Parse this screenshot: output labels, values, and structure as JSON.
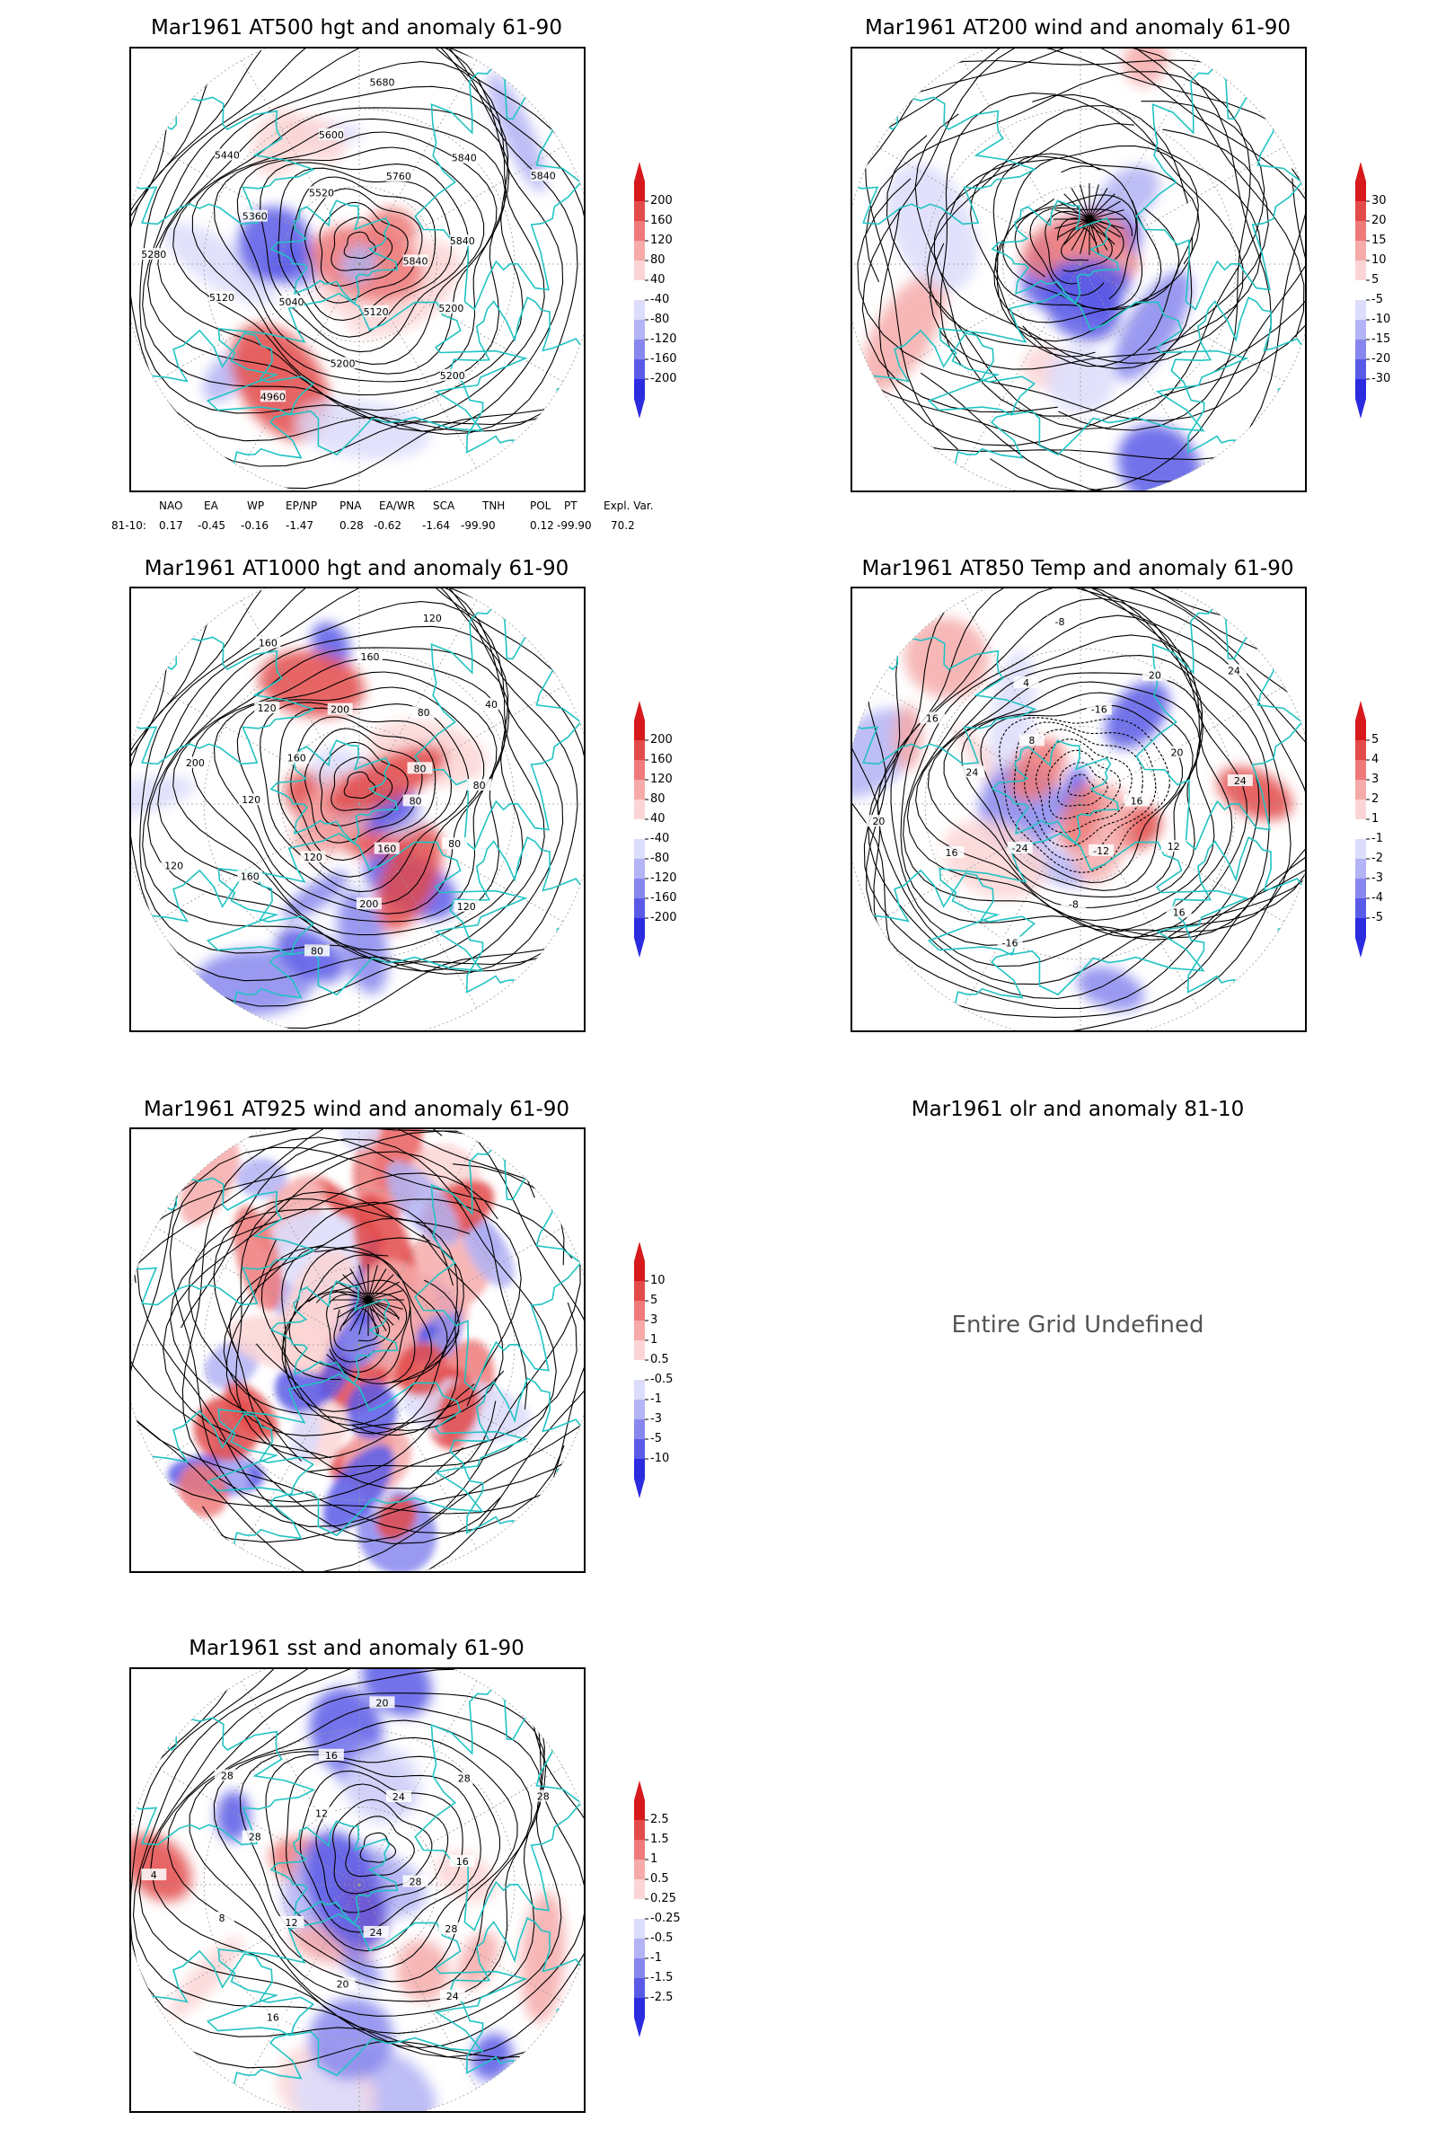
{
  "panels": [
    {
      "id": "p1",
      "title": "Mar1961 AT500 hgt and anomaly 61-90",
      "colorbar": [
        "200",
        "160",
        "120",
        "80",
        "40",
        "-40",
        "-80",
        "-120",
        "-160",
        "-200"
      ],
      "contour_labels": [
        "5840",
        "5200",
        "5200",
        "5120",
        "5200",
        "4960",
        "5040",
        "5120",
        "5280",
        "5360",
        "5440",
        "5520",
        "5600",
        "5680",
        "5760",
        "5840",
        "5840",
        "5840"
      ]
    },
    {
      "id": "p2",
      "title": "Mar1961 AT200 wind and anomaly 61-90",
      "colorbar": [
        "30",
        "20",
        "15",
        "10",
        "5",
        "-5",
        "-10",
        "-15",
        "-20",
        "-30"
      ],
      "contour_labels": []
    },
    {
      "id": "p3",
      "title": "Mar1961 AT1000 hgt and anomaly 61-90",
      "colorbar": [
        "200",
        "160",
        "120",
        "80",
        "40",
        "-40",
        "-80",
        "-120",
        "-160",
        "-200"
      ],
      "contour_labels": [
        "80",
        "80",
        "120",
        "160",
        "200",
        "80",
        "120",
        "160",
        "120",
        "120",
        "200",
        "160",
        "120",
        "160",
        "200",
        "160",
        "120",
        "80",
        "40",
        "80",
        "80"
      ]
    },
    {
      "id": "p4",
      "title": "Mar1961 AT850 Temp and anomaly 61-90",
      "colorbar": [
        "5",
        "4",
        "3",
        "2",
        "1",
        "-1",
        "-2",
        "-3",
        "-4",
        "-5"
      ],
      "contour_labels": [
        "16",
        "12",
        "16",
        "-12",
        "-8",
        "-16",
        "-24",
        "16",
        "20",
        "24",
        "16",
        "8",
        "4",
        "-8",
        "-16",
        "20",
        "24",
        "20",
        "24"
      ]
    },
    {
      "id": "p5",
      "title": "Mar1961 AT925 wind and anomaly 61-90",
      "colorbar": [
        "10",
        "5",
        "3",
        "1",
        "0.5",
        "-0.5",
        "-1",
        "-3",
        "-5",
        "-10"
      ],
      "contour_labels": []
    },
    {
      "id": "p6",
      "title": "Mar1961 olr and anomaly 81-10",
      "message": "Entire Grid Undefined"
    },
    {
      "id": "p7",
      "title": "Mar1961 sst and anomaly 61-90",
      "colorbar": [
        "2.5",
        "1.5",
        "1",
        "0.5",
        "0.25",
        "-0.25",
        "-0.5",
        "-1",
        "-1.5",
        "-2.5"
      ],
      "contour_labels": [
        "28",
        "28",
        "24",
        "24",
        "20",
        "16",
        "12",
        "8",
        "4",
        "28",
        "28",
        "12",
        "16",
        "20",
        "24",
        "28",
        "28",
        "16"
      ]
    }
  ],
  "teleconnection": {
    "headers": [
      "NAO",
      "EA",
      "WP",
      "EP/NP",
      "PNA",
      "EA/WR",
      "SCA",
      "TNH",
      "POL",
      "PT",
      "Expl. Var."
    ],
    "row_label": "81-10:",
    "values": [
      "0.17",
      "-0.45",
      "-0.16",
      "-1.47",
      "0.28",
      "-0.62",
      "-1.64",
      "-99.90",
      "0.12",
      "-99.90",
      "70.2"
    ]
  },
  "colors": {
    "pos_scale": [
      "#d7191c",
      "#e34a4a",
      "#ef7a7a",
      "#f6aaaa",
      "#fbd5d5"
    ],
    "neg_scale": [
      "#dcdcfb",
      "#b3b3f5",
      "#8787ef",
      "#5a5ae8",
      "#2b2be0"
    ],
    "coastline": "#22c3c3",
    "contour": "#000000"
  }
}
